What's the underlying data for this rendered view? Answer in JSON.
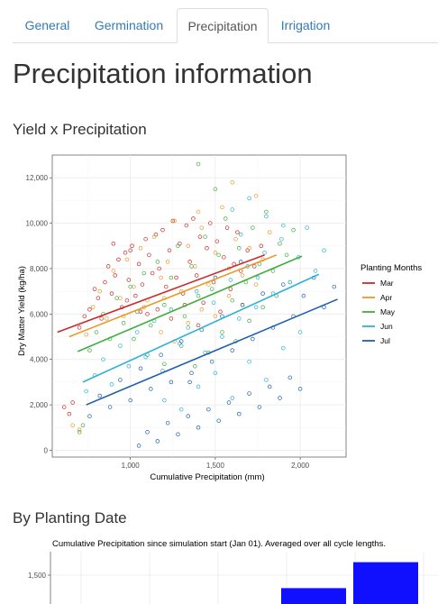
{
  "tabs": [
    {
      "label": "General",
      "active": false
    },
    {
      "label": "Germination",
      "active": false
    },
    {
      "label": "Precipitation",
      "active": true
    },
    {
      "label": "Irrigation",
      "active": false
    }
  ],
  "page_title": "Precipitation information",
  "section1_title": "Yield x Precipitation",
  "section2_title": "By Planting Date",
  "colors": {
    "Mar": "#cc2a2a",
    "Apr": "#e89a2a",
    "May": "#3fae3f",
    "Jun": "#2cb2d6",
    "Jul": "#1f5fae",
    "bar": "#1010ff",
    "link": "#337ab7"
  },
  "chart_data": [
    {
      "type": "scatter",
      "title": "",
      "xlabel": "Cumulative Precipitation (mm)",
      "ylabel": "Dry Matter Yield (kg/ha)",
      "xlim": [
        540,
        2270
      ],
      "ylim": [
        -300,
        13000
      ],
      "x_ticks": [
        1000,
        1500,
        2000
      ],
      "x_tick_labels": [
        "1,000",
        "1,500",
        "2,000"
      ],
      "y_ticks": [
        0,
        2000,
        4000,
        6000,
        8000,
        10000,
        12000
      ],
      "y_tick_labels": [
        "0",
        "2,000",
        "4,000",
        "6,000",
        "8,000",
        "10,000",
        "12,000"
      ],
      "grid": true,
      "legend_title": "Planting Months",
      "legend_position": "right",
      "series": [
        {
          "name": "Mar",
          "color_key": "Mar",
          "fit_line": [
            [
              570,
              5200
            ],
            [
              1790,
              8600
            ]
          ],
          "points": [
            [
              610,
              1900
            ],
            [
              640,
              1600
            ],
            [
              660,
              2100
            ],
            [
              700,
              5400
            ],
            [
              730,
              5900
            ],
            [
              760,
              6200
            ],
            [
              790,
              7100
            ],
            [
              810,
              6700
            ],
            [
              830,
              5800
            ],
            [
              850,
              7400
            ],
            [
              870,
              8100
            ],
            [
              890,
              6900
            ],
            [
              910,
              7700
            ],
            [
              930,
              8400
            ],
            [
              950,
              6300
            ],
            [
              970,
              8700
            ],
            [
              990,
              7500
            ],
            [
              1010,
              9000
            ],
            [
              1030,
              6800
            ],
            [
              1050,
              8200
            ],
            [
              1070,
              7300
            ],
            [
              1090,
              9300
            ],
            [
              1110,
              8600
            ],
            [
              1130,
              7800
            ],
            [
              1150,
              9500
            ],
            [
              1170,
              8000
            ],
            [
              1190,
              9700
            ],
            [
              1210,
              7200
            ],
            [
              1230,
              8800
            ],
            [
              1250,
              10100
            ],
            [
              1270,
              7600
            ],
            [
              1290,
              9100
            ],
            [
              1310,
              6900
            ],
            [
              1330,
              9900
            ],
            [
              1350,
              8300
            ],
            [
              1370,
              10200
            ],
            [
              1390,
              7700
            ],
            [
              1410,
              9400
            ],
            [
              1430,
              6500
            ],
            [
              1450,
              8900
            ],
            [
              1470,
              10000
            ],
            [
              1490,
              7400
            ],
            [
              1510,
              9200
            ],
            [
              1530,
              6100
            ],
            [
              1550,
              8500
            ],
            [
              1570,
              9800
            ],
            [
              1590,
              7100
            ],
            [
              1610,
              8200
            ],
            [
              1630,
              9600
            ],
            [
              1650,
              7900
            ],
            [
              1690,
              8800
            ],
            [
              1730,
              8100
            ],
            [
              1770,
              9000
            ],
            [
              1160,
              6200
            ],
            [
              1240,
              5800
            ],
            [
              1320,
              6400
            ],
            [
              1400,
              5500
            ],
            [
              980,
              6600
            ],
            [
              1060,
              6100
            ],
            [
              900,
              9100
            ],
            [
              1000,
              8800
            ],
            [
              1100,
              6000
            ]
          ]
        },
        {
          "name": "Apr",
          "color_key": "Apr",
          "fit_line": [
            [
              640,
              5000
            ],
            [
              1860,
              8600
            ]
          ],
          "points": [
            [
              660,
              1100
            ],
            [
              700,
              900
            ],
            [
              740,
              5100
            ],
            [
              780,
              6300
            ],
            [
              820,
              7000
            ],
            [
              860,
              5800
            ],
            [
              900,
              7900
            ],
            [
              940,
              6700
            ],
            [
              980,
              8400
            ],
            [
              1020,
              7200
            ],
            [
              1060,
              8900
            ],
            [
              1100,
              6600
            ],
            [
              1140,
              9400
            ],
            [
              1180,
              7600
            ],
            [
              1220,
              8300
            ],
            [
              1260,
              10100
            ],
            [
              1300,
              7000
            ],
            [
              1340,
              9000
            ],
            [
              1380,
              8100
            ],
            [
              1420,
              9800
            ],
            [
              1460,
              7300
            ],
            [
              1500,
              8700
            ],
            [
              1540,
              10700
            ],
            [
              1580,
              8000
            ],
            [
              1620,
              9300
            ],
            [
              1660,
              7700
            ],
            [
              1700,
              8900
            ],
            [
              1740,
              11200
            ],
            [
              1780,
              8400
            ],
            [
              1820,
              9600
            ],
            [
              1180,
              5200
            ],
            [
              1260,
              4800
            ],
            [
              1340,
              5600
            ],
            [
              1420,
              6200
            ],
            [
              1500,
              5900
            ],
            [
              1580,
              6800
            ],
            [
              1660,
              6400
            ],
            [
              1740,
              7300
            ],
            [
              960,
              5900
            ],
            [
              1080,
              6300
            ],
            [
              1200,
              6700
            ],
            [
              1400,
              10500
            ],
            [
              1600,
              11800
            ]
          ]
        },
        {
          "name": "May",
          "color_key": "May",
          "fit_line": [
            [
              690,
              4350
            ],
            [
              2010,
              8550
            ]
          ],
          "points": [
            [
              700,
              800
            ],
            [
              720,
              1100
            ],
            [
              760,
              4400
            ],
            [
              800,
              5200
            ],
            [
              840,
              6000
            ],
            [
              880,
              4900
            ],
            [
              920,
              6700
            ],
            [
              960,
              5600
            ],
            [
              1000,
              7200
            ],
            [
              1040,
              6100
            ],
            [
              1080,
              7800
            ],
            [
              1120,
              5500
            ],
            [
              1160,
              8300
            ],
            [
              1200,
              6400
            ],
            [
              1240,
              7600
            ],
            [
              1280,
              9000
            ],
            [
              1320,
              5900
            ],
            [
              1360,
              8100
            ],
            [
              1400,
              6800
            ],
            [
              1440,
              9400
            ],
            [
              1480,
              7100
            ],
            [
              1520,
              8600
            ],
            [
              1560,
              10200
            ],
            [
              1600,
              6600
            ],
            [
              1640,
              8900
            ],
            [
              1680,
              7400
            ],
            [
              1720,
              9800
            ],
            [
              1760,
              8200
            ],
            [
              1800,
              10500
            ],
            [
              1840,
              7900
            ],
            [
              1880,
              9100
            ],
            [
              1920,
              8600
            ],
            [
              1960,
              9700
            ],
            [
              1400,
              12600
            ],
            [
              1500,
              11500
            ],
            [
              1300,
              4600
            ],
            [
              1380,
              3700
            ],
            [
              1460,
              4300
            ],
            [
              1540,
              5200
            ],
            [
              1620,
              4800
            ],
            [
              1700,
              5700
            ],
            [
              1780,
              6300
            ],
            [
              1860,
              6800
            ],
            [
              1940,
              7400
            ],
            [
              1100,
              4200
            ],
            [
              1200,
              3800
            ],
            [
              1020,
              4900
            ]
          ]
        },
        {
          "name": "Jun",
          "color_key": "Jun",
          "fit_line": [
            [
              720,
              3000
            ],
            [
              2110,
              7750
            ]
          ],
          "points": [
            [
              740,
              2600
            ],
            [
              790,
              3300
            ],
            [
              840,
              4000
            ],
            [
              890,
              2900
            ],
            [
              940,
              4600
            ],
            [
              990,
              3700
            ],
            [
              1040,
              5200
            ],
            [
              1090,
              4100
            ],
            [
              1140,
              5700
            ],
            [
              1190,
              3500
            ],
            [
              1240,
              6200
            ],
            [
              1290,
              4700
            ],
            [
              1340,
              5400
            ],
            [
              1390,
              7000
            ],
            [
              1440,
              4300
            ],
            [
              1490,
              6500
            ],
            [
              1540,
              5000
            ],
            [
              1590,
              7500
            ],
            [
              1640,
              5800
            ],
            [
              1690,
              8100
            ],
            [
              1740,
              6300
            ],
            [
              1790,
              8700
            ],
            [
              1840,
              6900
            ],
            [
              1890,
              9300
            ],
            [
              1940,
              7400
            ],
            [
              1990,
              8500
            ],
            [
              2040,
              9800
            ],
            [
              2090,
              7900
            ],
            [
              2140,
              8800
            ],
            [
              1600,
              10600
            ],
            [
              1700,
              11100
            ],
            [
              1800,
              10300
            ],
            [
              1900,
              9900
            ],
            [
              1400,
              2800
            ],
            [
              1500,
              3400
            ],
            [
              1600,
              2300
            ],
            [
              1700,
              3900
            ],
            [
              1800,
              3100
            ],
            [
              1900,
              4500
            ],
            [
              2000,
              5200
            ],
            [
              1300,
              1800
            ],
            [
              1200,
              2200
            ],
            [
              1650,
              9500
            ],
            [
              1750,
              7600
            ]
          ]
        },
        {
          "name": "Jul",
          "color_key": "Jul",
          "fit_line": [
            [
              740,
              2000
            ],
            [
              2220,
              6650
            ]
          ],
          "points": [
            [
              760,
              1500
            ],
            [
              820,
              2400
            ],
            [
              880,
              1900
            ],
            [
              940,
              3100
            ],
            [
              1000,
              2200
            ],
            [
              1060,
              3600
            ],
            [
              1120,
              2700
            ],
            [
              1180,
              4200
            ],
            [
              1240,
              3000
            ],
            [
              1300,
              4800
            ],
            [
              1360,
              3400
            ],
            [
              1420,
              5300
            ],
            [
              1480,
              3900
            ],
            [
              1540,
              5900
            ],
            [
              1600,
              4400
            ],
            [
              1660,
              6400
            ],
            [
              1720,
              4900
            ],
            [
              1780,
              6900
            ],
            [
              1840,
              5400
            ],
            [
              1900,
              7300
            ],
            [
              1960,
              5900
            ],
            [
              2020,
              6800
            ],
            [
              2080,
              7600
            ],
            [
              2140,
              6300
            ],
            [
              2200,
              7200
            ],
            [
              1100,
              800
            ],
            [
              1160,
              400
            ],
            [
              1220,
              1200
            ],
            [
              1280,
              700
            ],
            [
              1340,
              1500
            ],
            [
              1400,
              1000
            ],
            [
              1460,
              1800
            ],
            [
              1520,
              1300
            ],
            [
              1580,
              2100
            ],
            [
              1640,
              1600
            ],
            [
              1700,
              2500
            ],
            [
              1760,
              1900
            ],
            [
              1820,
              2800
            ],
            [
              1880,
              2300
            ],
            [
              1940,
              3200
            ],
            [
              2000,
              2700
            ],
            [
              1500,
              7600
            ],
            [
              1650,
              8300
            ],
            [
              1050,
              200
            ],
            [
              1350,
              3000
            ]
          ]
        }
      ]
    },
    {
      "type": "bar",
      "title": "Cumulative Precipitation since simulation start (Jan 01). Averaged over all cycle lengths.",
      "xlabel": "",
      "ylabel": "",
      "y_ticks": [
        1500
      ],
      "y_tick_labels": [
        "1,500"
      ],
      "grid": true,
      "visible_bars": [
        {
          "label": "",
          "value": 1380
        },
        {
          "label": "",
          "value": 1620
        }
      ]
    }
  ]
}
